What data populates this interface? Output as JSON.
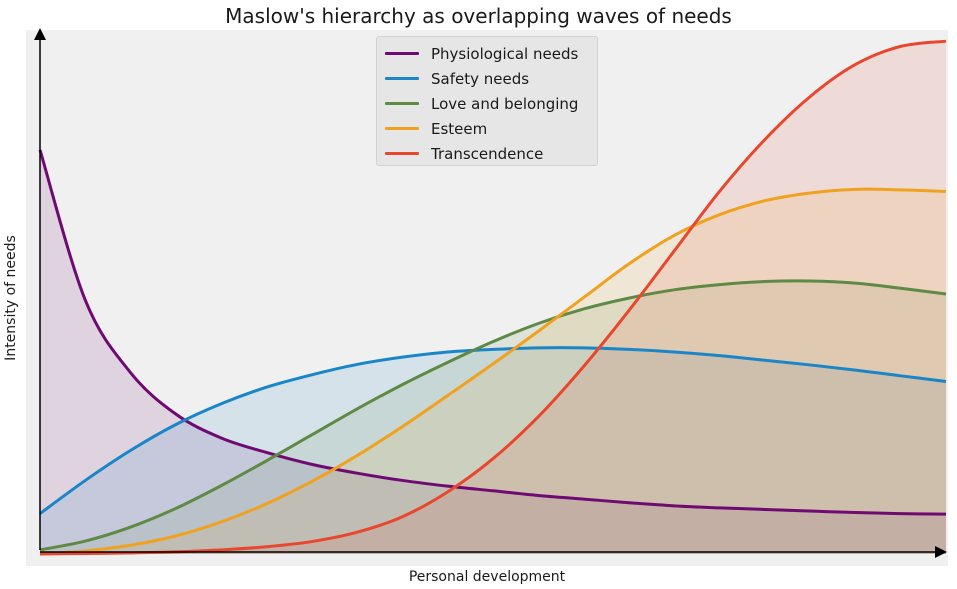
{
  "chart_data": {
    "type": "area",
    "title": "Maslow's hierarchy as overlapping waves of needs",
    "xlabel": "Personal development",
    "ylabel": "Intensity of needs",
    "xlim": [
      0,
      1
    ],
    "ylim": [
      0,
      1
    ],
    "x": [
      0.0,
      0.05,
      0.1,
      0.15,
      0.2,
      0.25,
      0.3,
      0.35,
      0.4,
      0.45,
      0.5,
      0.55,
      0.6,
      0.65,
      0.7,
      0.75,
      0.8,
      0.85,
      0.9,
      0.95,
      1.0
    ],
    "series": [
      {
        "name": "Physiological needs",
        "color": "#6f0a72",
        "values": [
          0.78,
          0.49,
          0.35,
          0.27,
          0.224,
          0.196,
          0.173,
          0.156,
          0.142,
          0.131,
          0.122,
          0.113,
          0.106,
          0.099,
          0.093,
          0.089,
          0.086,
          0.083,
          0.08,
          0.078,
          0.077
        ]
      },
      {
        "name": "Safety needs",
        "color": "#1a86c7",
        "values": [
          0.078,
          0.142,
          0.2,
          0.25,
          0.29,
          0.322,
          0.346,
          0.366,
          0.38,
          0.39,
          0.395,
          0.398,
          0.398,
          0.395,
          0.39,
          0.383,
          0.374,
          0.365,
          0.355,
          0.344,
          0.333
        ]
      },
      {
        "name": "Love and belonging",
        "color": "#5e8a45",
        "values": [
          0.008,
          0.025,
          0.052,
          0.088,
          0.132,
          0.18,
          0.23,
          0.28,
          0.327,
          0.37,
          0.41,
          0.445,
          0.473,
          0.494,
          0.51,
          0.52,
          0.526,
          0.527,
          0.523,
          0.513,
          0.502
        ]
      },
      {
        "name": "Esteem",
        "color": "#f0a11f",
        "values": [
          0.0,
          0.006,
          0.017,
          0.035,
          0.062,
          0.097,
          0.14,
          0.19,
          0.246,
          0.306,
          0.367,
          0.43,
          0.495,
          0.56,
          0.615,
          0.655,
          0.682,
          0.697,
          0.704,
          0.703,
          0.7
        ]
      },
      {
        "name": "Transcendence",
        "color": "#e8472d",
        "values": [
          0.0,
          0.001,
          0.002,
          0.004,
          0.008,
          0.014,
          0.024,
          0.042,
          0.072,
          0.12,
          0.184,
          0.265,
          0.362,
          0.47,
          0.585,
          0.7,
          0.8,
          0.883,
          0.945,
          0.98,
          0.99
        ]
      }
    ],
    "grid": false,
    "legend_position": "top-center"
  }
}
